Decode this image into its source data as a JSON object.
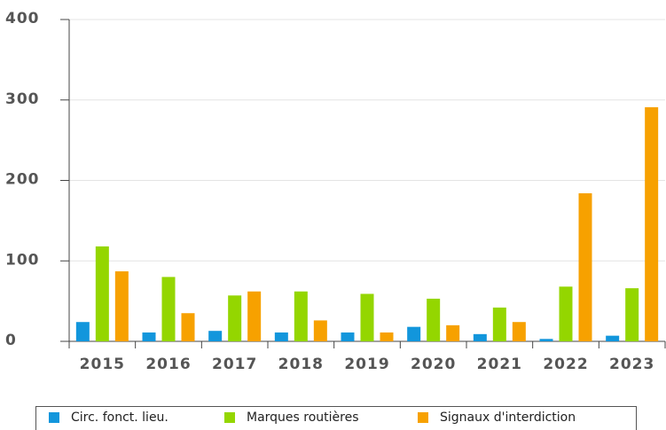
{
  "chart_data": {
    "type": "bar",
    "categories": [
      "2015",
      "2016",
      "2017",
      "2018",
      "2019",
      "2020",
      "2021",
      "2022",
      "2023"
    ],
    "series": [
      {
        "name": "Circ. fonct. lieu.",
        "color": "#1296dc",
        "values": [
          24,
          11,
          13,
          11,
          11,
          18,
          9,
          3,
          7
        ]
      },
      {
        "name": "Marques routières",
        "color": "#94d600",
        "values": [
          118,
          80,
          57,
          62,
          59,
          53,
          42,
          68,
          66
        ]
      },
      {
        "name": "Signaux d'interdiction",
        "color": "#f7a100",
        "values": [
          87,
          35,
          62,
          26,
          11,
          20,
          24,
          184,
          291
        ]
      }
    ],
    "ylim": [
      0,
      400
    ],
    "yticks": [
      0,
      100,
      200,
      300,
      400
    ],
    "grid": true
  }
}
